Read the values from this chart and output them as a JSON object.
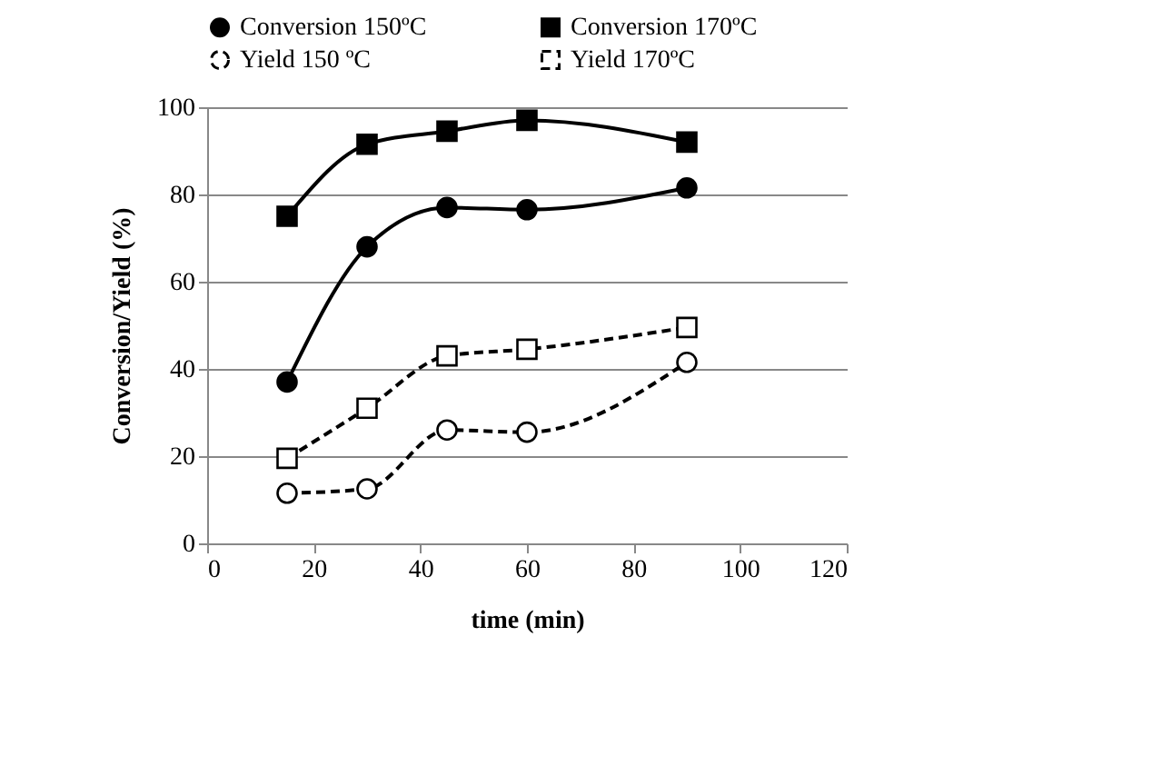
{
  "chart_data": {
    "type": "line",
    "xlabel": "time (min)",
    "ylabel": "Conversion/Yield (%)",
    "x": [
      15,
      30,
      45,
      60,
      90
    ],
    "series": [
      {
        "name": "Conversion 150ºC",
        "color": "#000000",
        "marker": "circle",
        "line_style": "solid",
        "values": [
          37,
          68,
          77,
          76.5,
          81.5
        ]
      },
      {
        "name": "Conversion 170ºC",
        "color": "#000000",
        "marker": "square",
        "line_style": "solid",
        "values": [
          75,
          91.5,
          94.5,
          97,
          92
        ]
      },
      {
        "name": "Yield 150 ºC",
        "color": "#000000",
        "marker": "circle",
        "line_style": "dashed",
        "values": [
          11.5,
          12.5,
          26,
          25.5,
          41.5
        ]
      },
      {
        "name": "Yield 170ºC",
        "color": "#000000",
        "marker": "square",
        "line_style": "dashed",
        "values": [
          19.5,
          31,
          43,
          44.5,
          49.5
        ]
      }
    ],
    "xlim": [
      0,
      120
    ],
    "xticks": [
      0,
      20,
      40,
      60,
      80,
      100,
      120
    ],
    "ylim": [
      0,
      100
    ],
    "yticks": [
      0,
      20,
      40,
      60,
      80,
      100
    ],
    "grid": "y",
    "legend": "top"
  }
}
